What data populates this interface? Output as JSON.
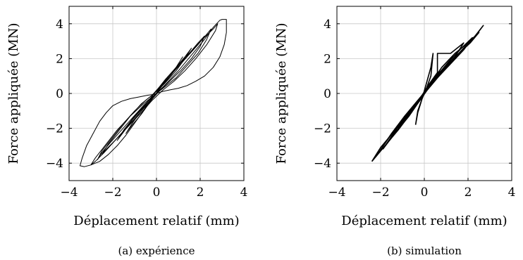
{
  "chart_data": [
    {
      "type": "line",
      "xlabel": "Déplacement relatif (mm)",
      "ylabel": "Force appliquée (MN)",
      "caption": "(a) expérience",
      "xlim": [
        -4,
        4
      ],
      "ylim": [
        -5,
        5
      ],
      "xticks": [
        -4,
        -2,
        0,
        2,
        4
      ],
      "yticks": [
        -4,
        -2,
        0,
        2,
        4
      ],
      "grid": true,
      "series": [
        {
          "x": [
            0,
            0.4,
            1.0,
            1.6,
            2.2,
            2.6,
            2.9,
            3.0,
            3.2,
            3.2,
            3.1,
            2.9,
            2.6,
            2.2,
            1.8,
            1.4,
            1.0,
            0.6,
            0.3,
            0.1,
            0,
            -0.3,
            -0.6,
            -1.0,
            -1.4,
            -1.8,
            -2.2,
            -2.6,
            -3.0,
            -3.3,
            -3.5,
            -3.4,
            -3.2,
            -2.9,
            -2.6,
            -2.3,
            -2.0,
            -1.6,
            -1.2,
            -0.8,
            -0.4,
            -0.1,
            0
          ],
          "y": [
            0,
            0.5,
            1.3,
            2.2,
            3.1,
            3.8,
            4.2,
            4.25,
            4.25,
            3.5,
            2.8,
            2.1,
            1.5,
            1.0,
            0.7,
            0.45,
            0.3,
            0.2,
            0.12,
            0.05,
            0,
            -0.4,
            -1.0,
            -1.7,
            -2.4,
            -3.0,
            -3.5,
            -3.9,
            -4.1,
            -4.2,
            -4.15,
            -3.7,
            -3.0,
            -2.3,
            -1.6,
            -1.1,
            -0.7,
            -0.45,
            -0.3,
            -0.2,
            -0.1,
            -0.05,
            0
          ]
        },
        {
          "x": [
            -0.2,
            0.3,
            0.9,
            1.5,
            2.1,
            2.6,
            2.8,
            2.7,
            2.3,
            1.8,
            1.3,
            0.8,
            0.3,
            -0.2,
            -0.7,
            -1.3,
            -1.9,
            -2.4,
            -2.8,
            -3.0,
            -2.8,
            -2.3,
            -1.8,
            -1.2,
            -0.7,
            -0.2
          ],
          "y": [
            -0.1,
            0.6,
            1.5,
            2.3,
            3.1,
            3.7,
            4.0,
            3.6,
            2.8,
            2.0,
            1.3,
            0.7,
            0.2,
            -0.4,
            -1.1,
            -1.9,
            -2.7,
            -3.4,
            -3.9,
            -4.1,
            -3.7,
            -2.9,
            -2.1,
            -1.3,
            -0.6,
            -0.1
          ]
        },
        {
          "x": [
            -0.1,
            0.4,
            0.9,
            1.4,
            1.9,
            2.3,
            2.5,
            2.3,
            1.9,
            1.4,
            0.9,
            0.4,
            -0.1,
            -0.6,
            -1.1,
            -1.6,
            -2.1,
            -2.5,
            -2.7,
            -2.5,
            -2.0,
            -1.5,
            -1.0,
            -0.5,
            -0.1
          ],
          "y": [
            0,
            0.7,
            1.4,
            2.1,
            2.8,
            3.4,
            3.7,
            3.1,
            2.3,
            1.6,
            0.9,
            0.4,
            -0.1,
            -0.7,
            -1.4,
            -2.1,
            -2.8,
            -3.4,
            -3.8,
            -3.3,
            -2.5,
            -1.7,
            -1.0,
            -0.4,
            0
          ]
        },
        {
          "x": [
            0,
            0.5,
            1.0,
            1.5,
            1.9,
            2.2,
            2.0,
            1.6,
            1.1,
            0.6,
            0.1,
            -0.4,
            -0.9,
            -1.4,
            -1.9,
            -2.3,
            -2.5,
            -2.2,
            -1.7,
            -1.2,
            -0.6,
            0
          ],
          "y": [
            0.05,
            0.8,
            1.6,
            2.3,
            2.9,
            3.3,
            2.7,
            2.0,
            1.3,
            0.7,
            0.1,
            -0.6,
            -1.3,
            -2.0,
            -2.7,
            -3.2,
            -3.5,
            -2.9,
            -2.1,
            -1.3,
            -0.6,
            0
          ]
        },
        {
          "x": [
            -0.1,
            0.4,
            0.9,
            1.3,
            1.6,
            1.3,
            0.9,
            0.4,
            -0.1,
            -0.6,
            -1.1,
            -1.5,
            -1.8,
            -1.5,
            -1.0,
            -0.5,
            -0.1
          ],
          "y": [
            0,
            0.8,
            1.5,
            2.1,
            2.6,
            2.0,
            1.3,
            0.6,
            0,
            -0.8,
            -1.5,
            -2.2,
            -2.7,
            -2.1,
            -1.3,
            -0.6,
            0
          ]
        },
        {
          "x": [
            0,
            0.3,
            0.7,
            1.0,
            1.2,
            0.9,
            0.5,
            0.1,
            -0.3,
            -0.7,
            -1.1,
            -1.4,
            -1.1,
            -0.7,
            -0.3,
            0
          ],
          "y": [
            0,
            0.5,
            1.1,
            1.7,
            2.1,
            1.5,
            0.8,
            0.2,
            -0.5,
            -1.2,
            -1.8,
            -2.3,
            -1.7,
            -1.0,
            -0.4,
            0
          ]
        }
      ]
    },
    {
      "type": "line",
      "xlabel": "Déplacement relatif (mm)",
      "ylabel": "Force appliquée (MN)",
      "caption": "(b) simulation",
      "xlim": [
        -4,
        4
      ],
      "ylim": [
        -5,
        5
      ],
      "xticks": [
        -4,
        -2,
        0,
        2,
        4
      ],
      "yticks": [
        -4,
        -2,
        0,
        2,
        4
      ],
      "grid": true,
      "series": [
        {
          "x": [
            -2.4,
            -1.8,
            -1.2,
            -0.6,
            0,
            0.6,
            1.2,
            1.8,
            2.4,
            2.7,
            2.2,
            1.6,
            1.0,
            0.4,
            -0.2,
            -0.8,
            -1.4,
            -2.0,
            -2.4
          ],
          "y": [
            -3.9,
            -3.0,
            -2.1,
            -1.1,
            0,
            1.1,
            1.8,
            2.6,
            3.4,
            3.9,
            3.1,
            2.3,
            1.5,
            0.6,
            -0.3,
            -1.3,
            -2.2,
            -3.1,
            -3.9
          ]
        },
        {
          "x": [
            -2.2,
            -1.6,
            -1.0,
            -0.4,
            0.2,
            0.8,
            1.4,
            2.0,
            2.5,
            2.1,
            1.5,
            0.9,
            0.3,
            -0.3,
            -0.9,
            -1.5,
            -2.2
          ],
          "y": [
            -3.6,
            -2.5,
            -1.6,
            -0.7,
            0.4,
            1.5,
            2.3,
            2.9,
            3.5,
            2.9,
            2.2,
            1.4,
            0.5,
            -0.4,
            -1.3,
            -2.3,
            -3.6
          ]
        },
        {
          "x": [
            -1.9,
            -1.3,
            -0.7,
            -0.1,
            0.5,
            1.1,
            1.7,
            2.2,
            1.8,
            1.2,
            0.6,
            0,
            -0.6,
            -1.2,
            -1.9
          ],
          "y": [
            -3.2,
            -2.2,
            -1.3,
            -0.2,
            0.9,
            1.8,
            2.6,
            3.2,
            2.5,
            1.7,
            0.9,
            0,
            -0.9,
            -1.9,
            -3.2
          ]
        },
        {
          "x": [
            -1.6,
            -1.0,
            -0.4,
            0.2,
            0.6,
            0.6,
            1.2,
            1.8,
            1.4,
            0.8,
            0.2,
            -0.4,
            -1.0,
            -1.6
          ],
          "y": [
            -2.7,
            -1.7,
            -0.7,
            0.5,
            1.2,
            2.3,
            2.3,
            2.9,
            2.1,
            1.3,
            0.4,
            -0.6,
            -1.5,
            -2.7
          ]
        },
        {
          "x": [
            -1.2,
            -0.7,
            -0.2,
            0.3,
            0.8,
            1.3,
            0.9,
            0.4,
            -0.1,
            -0.6,
            -1.2
          ],
          "y": [
            -2.0,
            -1.2,
            -0.4,
            0.5,
            1.3,
            2.1,
            1.4,
            0.7,
            -0.1,
            -1.0,
            -2.0
          ]
        },
        {
          "x": [
            -0.4,
            -0.3,
            -0.1,
            0.1,
            0.3,
            0.4,
            0.3,
            0.1,
            -0.1,
            -0.3,
            -0.4
          ],
          "y": [
            -1.8,
            -1.0,
            -0.3,
            0.3,
            1.0,
            2.3,
            1.5,
            0.6,
            -0.3,
            -1.1,
            -1.8
          ]
        }
      ]
    }
  ]
}
